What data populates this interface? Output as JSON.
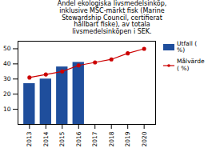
{
  "chart_data": {
    "type": "bar",
    "title": "Andel ekologiska livsmedelsinköp,\ninklusive MSC-märkt fisk (Marine\nStewardship Council, certifierat\nhållbart fiske), av totala\nlivsmedelsinköpen i SEK.",
    "x": [
      2013,
      2014,
      2015,
      2016,
      2017,
      2018,
      2019,
      2020
    ],
    "series": [
      {
        "name": "Utfall (\n%)",
        "type": "bar",
        "color": "#1f4e9c",
        "values": [
          27,
          30,
          38,
          41,
          null,
          null,
          null,
          null
        ]
      },
      {
        "name": "Målvärde\n( %)",
        "type": "line",
        "marker": "circle",
        "color": "#cc0000",
        "values": [
          31,
          33,
          35,
          39,
          41,
          43,
          47,
          50
        ]
      }
    ],
    "xlim": [
      2012.3,
      2020.7
    ],
    "xticks": [
      2013,
      2014,
      2015,
      2016,
      2017,
      2018,
      2019,
      2020
    ],
    "ylim": [
      0,
      55
    ],
    "yticks": [
      10,
      20,
      30,
      40,
      50
    ],
    "legend": "right"
  }
}
